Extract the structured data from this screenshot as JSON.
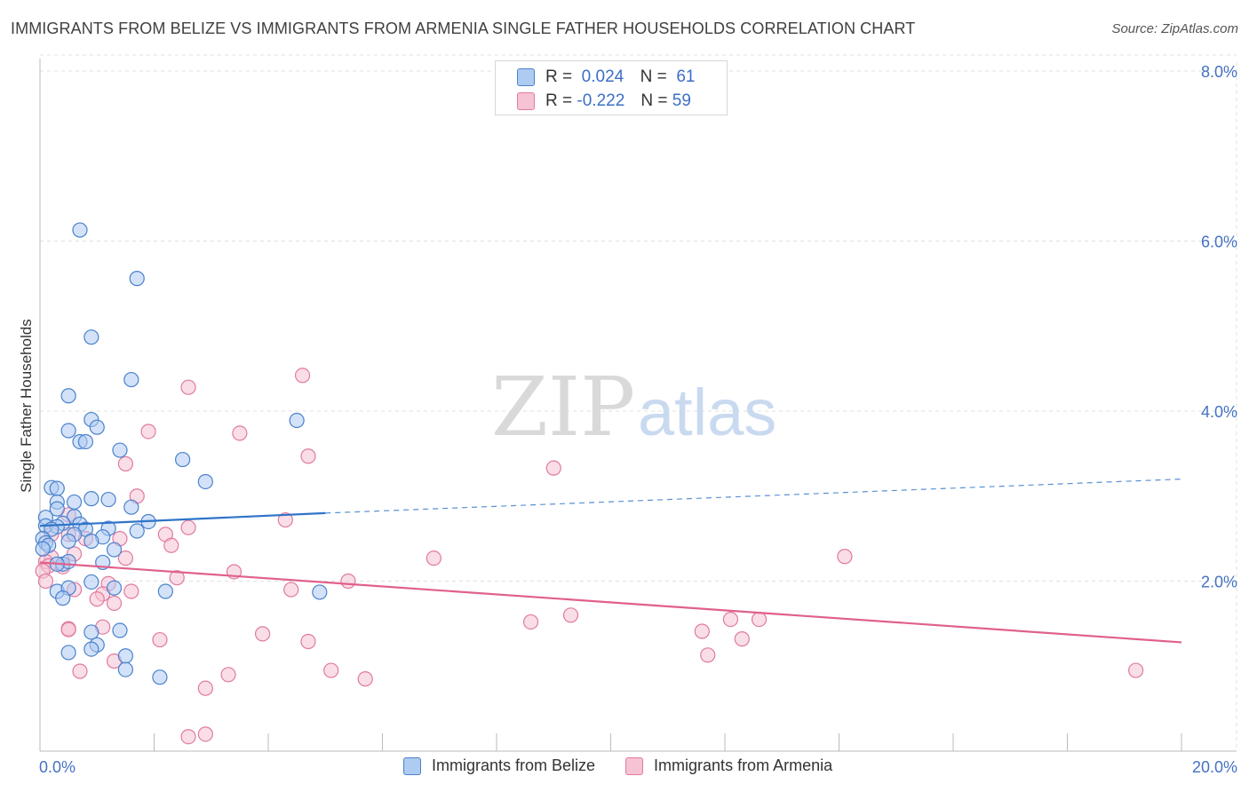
{
  "title": "IMMIGRANTS FROM BELIZE VS IMMIGRANTS FROM ARMENIA SINGLE FATHER HOUSEHOLDS CORRELATION CHART",
  "source": "Source: ZipAtlas.com",
  "watermark": {
    "zip": "ZIP",
    "atlas": "atlas"
  },
  "colors": {
    "belize_fill": "#aecbf2",
    "belize_stroke": "#4a82cc",
    "belize_line": "#2f74c8",
    "armenia_fill": "#f6c3d4",
    "armenia_stroke": "#e07aa0",
    "armenia_line": "#e0608c",
    "tick_label": "#4472c4",
    "grid": "#e0e0e0"
  },
  "legend_stats": [
    {
      "r_label": "R =",
      "r_value": "0.024",
      "n_label": "N =",
      "n_value": "61"
    },
    {
      "r_label": "R =",
      "r_value": "-0.222",
      "n_label": "N =",
      "n_value": "59"
    }
  ],
  "chart_data": {
    "type": "scatter",
    "title": "IMMIGRANTS FROM BELIZE VS IMMIGRANTS FROM ARMENIA SINGLE FATHER HOUSEHOLDS CORRELATION CHART",
    "xlabel": "",
    "ylabel": "Single Father Households",
    "xlim": [
      0,
      20
    ],
    "ylim": [
      0,
      8.2
    ],
    "x_tick_labels": [
      "0.0%",
      "20.0%"
    ],
    "y_ticks": [
      2,
      4,
      6,
      8
    ],
    "y_tick_labels": [
      "2.0%",
      "4.0%",
      "6.0%",
      "8.0%"
    ],
    "grid": true,
    "legend_position": "bottom",
    "series": [
      {
        "name": "Immigrants from Belize",
        "r": 0.024,
        "n": 61,
        "trend": {
          "x": [
            0,
            5
          ],
          "y": [
            2.65,
            2.8
          ],
          "dashed_to": {
            "x": 20,
            "y": 3.2
          }
        },
        "points": [
          [
            0.7,
            6.13
          ],
          [
            1.7,
            5.56
          ],
          [
            0.9,
            4.87
          ],
          [
            1.6,
            4.37
          ],
          [
            0.5,
            4.18
          ],
          [
            0.9,
            3.9
          ],
          [
            4.5,
            3.89
          ],
          [
            1.0,
            3.81
          ],
          [
            0.5,
            3.77
          ],
          [
            0.7,
            3.64
          ],
          [
            0.8,
            3.64
          ],
          [
            1.4,
            3.54
          ],
          [
            2.5,
            3.43
          ],
          [
            2.9,
            3.17
          ],
          [
            0.2,
            3.1
          ],
          [
            0.3,
            3.09
          ],
          [
            0.9,
            2.97
          ],
          [
            1.2,
            2.96
          ],
          [
            0.3,
            2.93
          ],
          [
            0.6,
            2.93
          ],
          [
            0.3,
            2.85
          ],
          [
            1.6,
            2.87
          ],
          [
            0.1,
            2.75
          ],
          [
            0.6,
            2.76
          ],
          [
            0.4,
            2.68
          ],
          [
            1.9,
            2.7
          ],
          [
            0.1,
            2.65
          ],
          [
            0.3,
            2.64
          ],
          [
            0.7,
            2.67
          ],
          [
            0.2,
            2.61
          ],
          [
            0.8,
            2.61
          ],
          [
            1.2,
            2.62
          ],
          [
            1.7,
            2.59
          ],
          [
            0.6,
            2.55
          ],
          [
            0.05,
            2.5
          ],
          [
            1.1,
            2.52
          ],
          [
            0.1,
            2.45
          ],
          [
            0.15,
            2.42
          ],
          [
            0.5,
            2.47
          ],
          [
            0.9,
            2.47
          ],
          [
            0.05,
            2.38
          ],
          [
            1.3,
            2.37
          ],
          [
            0.4,
            2.2
          ],
          [
            0.5,
            2.23
          ],
          [
            1.1,
            2.22
          ],
          [
            0.9,
            1.99
          ],
          [
            1.3,
            1.92
          ],
          [
            2.2,
            1.88
          ],
          [
            0.3,
            1.88
          ],
          [
            0.5,
            1.92
          ],
          [
            4.9,
            1.87
          ],
          [
            0.4,
            1.8
          ],
          [
            0.9,
            1.4
          ],
          [
            1.4,
            1.42
          ],
          [
            1.0,
            1.25
          ],
          [
            0.9,
            1.2
          ],
          [
            0.5,
            1.16
          ],
          [
            1.5,
            1.12
          ],
          [
            1.5,
            0.96
          ],
          [
            2.1,
            0.87
          ],
          [
            0.3,
            2.2
          ]
        ]
      },
      {
        "name": "Immigrants from Armenia",
        "r": -0.222,
        "n": 59,
        "trend": {
          "x": [
            0,
            20
          ],
          "y": [
            2.22,
            1.28
          ]
        },
        "points": [
          [
            4.6,
            4.42
          ],
          [
            2.6,
            4.28
          ],
          [
            1.9,
            3.76
          ],
          [
            3.5,
            3.74
          ],
          [
            4.7,
            3.47
          ],
          [
            1.5,
            3.38
          ],
          [
            9.0,
            3.33
          ],
          [
            1.7,
            3.0
          ],
          [
            0.5,
            2.78
          ],
          [
            4.3,
            2.72
          ],
          [
            2.6,
            2.63
          ],
          [
            2.2,
            2.55
          ],
          [
            0.5,
            2.55
          ],
          [
            0.8,
            2.5
          ],
          [
            1.4,
            2.5
          ],
          [
            0.6,
            2.32
          ],
          [
            0.2,
            2.28
          ],
          [
            1.5,
            2.27
          ],
          [
            6.9,
            2.27
          ],
          [
            14.1,
            2.29
          ],
          [
            2.3,
            2.42
          ],
          [
            0.1,
            2.23
          ],
          [
            0.15,
            2.18
          ],
          [
            0.4,
            2.17
          ],
          [
            0.05,
            2.12
          ],
          [
            3.4,
            2.11
          ],
          [
            2.4,
            2.04
          ],
          [
            5.4,
            2.0
          ],
          [
            1.2,
            1.97
          ],
          [
            0.6,
            1.9
          ],
          [
            4.4,
            1.9
          ],
          [
            1.6,
            1.88
          ],
          [
            1.1,
            1.85
          ],
          [
            0.1,
            2.0
          ],
          [
            1.0,
            1.79
          ],
          [
            1.3,
            1.74
          ],
          [
            9.3,
            1.6
          ],
          [
            8.6,
            1.52
          ],
          [
            12.6,
            1.55
          ],
          [
            12.1,
            1.55
          ],
          [
            0.5,
            1.44
          ],
          [
            1.1,
            1.46
          ],
          [
            3.9,
            1.38
          ],
          [
            11.6,
            1.41
          ],
          [
            2.1,
            1.31
          ],
          [
            4.7,
            1.29
          ],
          [
            12.3,
            1.32
          ],
          [
            11.7,
            1.13
          ],
          [
            1.3,
            1.06
          ],
          [
            0.7,
            0.94
          ],
          [
            5.1,
            0.95
          ],
          [
            3.3,
            0.9
          ],
          [
            5.7,
            0.85
          ],
          [
            2.9,
            0.74
          ],
          [
            19.2,
            0.95
          ],
          [
            2.9,
            0.2
          ],
          [
            2.6,
            0.17
          ],
          [
            0.5,
            1.43
          ],
          [
            0.2,
            2.55
          ]
        ]
      }
    ]
  }
}
